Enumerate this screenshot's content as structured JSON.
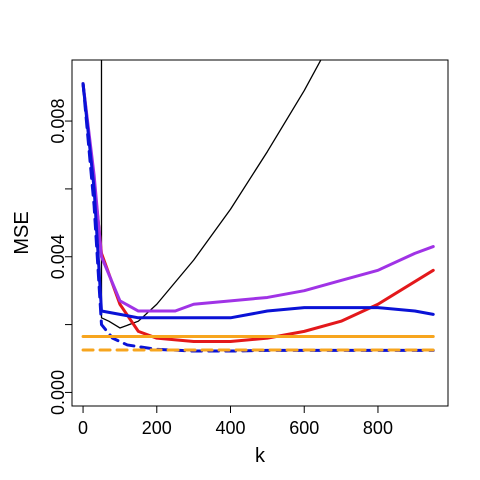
{
  "chart_data": {
    "type": "line",
    "title": "",
    "xlabel": "k",
    "ylabel": "MSE",
    "xlim": [
      -30,
      990
    ],
    "ylim": [
      -0.0004,
      0.0098
    ],
    "x_ticks": [
      0,
      200,
      400,
      600,
      800
    ],
    "x_tick_labels": [
      "0",
      "200",
      "400",
      "600",
      "800"
    ],
    "y_ticks": [
      0.0,
      0.002,
      0.004,
      0.006,
      0.008
    ],
    "y_tick_labels": [
      "0.000",
      "",
      "0.004",
      "",
      "0.008"
    ],
    "grid": false,
    "series": [
      {
        "color": "#000000",
        "dash": "solid",
        "width": 1.3,
        "points": [
          [
            50,
            0.0103
          ],
          [
            50,
            0.0022
          ],
          [
            70,
            0.0021
          ],
          [
            100,
            0.0019
          ],
          [
            150,
            0.0021
          ],
          [
            200,
            0.0026
          ],
          [
            300,
            0.0039
          ],
          [
            400,
            0.0054
          ],
          [
            500,
            0.0071
          ],
          [
            600,
            0.0089
          ],
          [
            650,
            0.0099
          ]
        ]
      },
      {
        "color": "#e3181b",
        "dash": "solid",
        "width": 3,
        "points": [
          [
            0,
            0.0091
          ],
          [
            30,
            0.0062
          ],
          [
            50,
            0.0041
          ],
          [
            100,
            0.0026
          ],
          [
            150,
            0.0018
          ],
          [
            200,
            0.0016
          ],
          [
            300,
            0.0015
          ],
          [
            400,
            0.0015
          ],
          [
            500,
            0.0016
          ],
          [
            600,
            0.0018
          ],
          [
            700,
            0.0021
          ],
          [
            800,
            0.0026
          ],
          [
            950,
            0.0036
          ]
        ]
      },
      {
        "color": "#a033e6",
        "dash": "solid",
        "width": 3,
        "points": [
          [
            0,
            0.0091
          ],
          [
            30,
            0.0064
          ],
          [
            50,
            0.004
          ],
          [
            100,
            0.0027
          ],
          [
            150,
            0.0024
          ],
          [
            200,
            0.0024
          ],
          [
            250,
            0.0024
          ],
          [
            300,
            0.0026
          ],
          [
            400,
            0.0027
          ],
          [
            500,
            0.0028
          ],
          [
            600,
            0.003
          ],
          [
            700,
            0.0033
          ],
          [
            800,
            0.0036
          ],
          [
            900,
            0.0041
          ],
          [
            950,
            0.0043
          ]
        ]
      },
      {
        "color": "#0a12d6",
        "dash": "solid",
        "width": 3,
        "points": [
          [
            0,
            0.0091
          ],
          [
            30,
            0.006
          ],
          [
            50,
            0.0024
          ],
          [
            100,
            0.0023
          ],
          [
            150,
            0.0022
          ],
          [
            200,
            0.0022
          ],
          [
            300,
            0.0022
          ],
          [
            400,
            0.0022
          ],
          [
            500,
            0.0024
          ],
          [
            600,
            0.0025
          ],
          [
            700,
            0.0025
          ],
          [
            800,
            0.0025
          ],
          [
            900,
            0.0024
          ],
          [
            950,
            0.0023
          ]
        ]
      },
      {
        "color": "#0a12d6",
        "dash": "dashed",
        "width": 3,
        "points": [
          [
            0,
            0.0091
          ],
          [
            30,
            0.0055
          ],
          [
            50,
            0.002
          ],
          [
            80,
            0.0016
          ],
          [
            120,
            0.0014
          ],
          [
            200,
            0.00127
          ],
          [
            300,
            0.00122
          ],
          [
            400,
            0.00122
          ],
          [
            500,
            0.00124
          ],
          [
            600,
            0.00124
          ],
          [
            700,
            0.00124
          ],
          [
            800,
            0.00124
          ],
          [
            900,
            0.00124
          ],
          [
            950,
            0.00124
          ]
        ]
      },
      {
        "color": "#f7a51e",
        "dash": "solid",
        "width": 3,
        "points": [
          [
            0,
            0.00165
          ],
          [
            950,
            0.00165
          ]
        ]
      },
      {
        "color": "#f7a51e",
        "dash": "dashed",
        "width": 3,
        "points": [
          [
            0,
            0.00125
          ],
          [
            950,
            0.00125
          ]
        ]
      }
    ]
  }
}
